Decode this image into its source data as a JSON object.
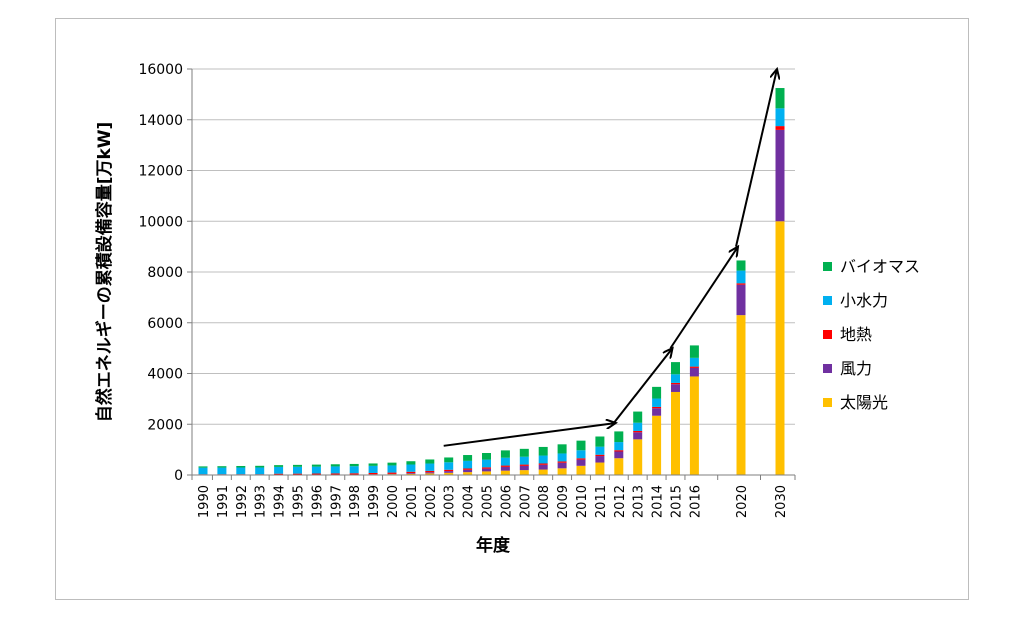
{
  "chart_data": {
    "type": "bar",
    "stacked": true,
    "title": "",
    "xlabel": "年度",
    "ylabel": "自然エネルギーの累積設備容量[万kW]",
    "ylim": [
      0,
      16000
    ],
    "yticks": [
      0,
      2000,
      4000,
      6000,
      8000,
      10000,
      12000,
      14000,
      16000
    ],
    "ytick_labels": [
      "0",
      "2000",
      "4000",
      "6000",
      "8000",
      "10000",
      "12000",
      "14000",
      "16000"
    ],
    "grid": "horizontal",
    "legend_position": "right",
    "categories": [
      "1990",
      "1991",
      "1992",
      "1993",
      "1994",
      "1995",
      "1996",
      "1997",
      "1998",
      "1999",
      "2000",
      "2001",
      "2002",
      "2003",
      "2004",
      "2005",
      "2006",
      "2007",
      "2008",
      "2009",
      "2010",
      "2011",
      "2012",
      "2013",
      "2014",
      "2015",
      "2016",
      "2020",
      "2030"
    ],
    "series": [
      {
        "name": "太陽光",
        "color": "#ffc000",
        "values": [
          2,
          3,
          3,
          3,
          4,
          4,
          6,
          9,
          13,
          21,
          33,
          45,
          64,
          86,
          113,
          142,
          171,
          192,
          214,
          263,
          362,
          491,
          661,
          1405,
          2336,
          3272,
          3884,
          6300,
          10000
        ]
      },
      {
        "name": "風力",
        "color": "#7030a0",
        "values": [
          0,
          0,
          1,
          1,
          2,
          2,
          2,
          3,
          4,
          7,
          10,
          31,
          46,
          68,
          92,
          108,
          149,
          167,
          188,
          220,
          244,
          256,
          265,
          278,
          295,
          305,
          336,
          1200,
          3600
        ]
      },
      {
        "name": "地熱",
        "color": "#ff0000",
        "values": [
          27,
          27,
          27,
          27,
          46,
          48,
          50,
          51,
          51,
          52,
          52,
          52,
          52,
          52,
          52,
          52,
          52,
          52,
          52,
          52,
          52,
          52,
          52,
          52,
          52,
          52,
          52,
          55,
          150
        ]
      },
      {
        "name": "小水力",
        "color": "#00b0f0",
        "values": [
          260,
          262,
          264,
          266,
          267,
          270,
          272,
          275,
          278,
          280,
          282,
          285,
          290,
          295,
          300,
          305,
          308,
          310,
          312,
          314,
          316,
          318,
          320,
          325,
          330,
          340,
          345,
          500,
          700
        ]
      },
      {
        "name": "バイオマス",
        "color": "#00b050",
        "values": [
          50,
          55,
          60,
          65,
          70,
          75,
          80,
          85,
          90,
          95,
          110,
          130,
          160,
          190,
          230,
          260,
          290,
          310,
          340,
          360,
          380,
          400,
          420,
          440,
          460,
          480,
          490,
          400,
          800
        ]
      }
    ],
    "arrows": [
      {
        "from": [
          "2003",
          1150
        ],
        "to": [
          "2012",
          2050
        ]
      },
      {
        "from": [
          "2012",
          2050
        ],
        "to": [
          "2015",
          5000
        ]
      },
      {
        "from": [
          "2015",
          5000
        ],
        "to": [
          "2020",
          9000
        ]
      },
      {
        "from": [
          "2020",
          9000
        ],
        "to": [
          "2030",
          16000
        ]
      }
    ]
  }
}
